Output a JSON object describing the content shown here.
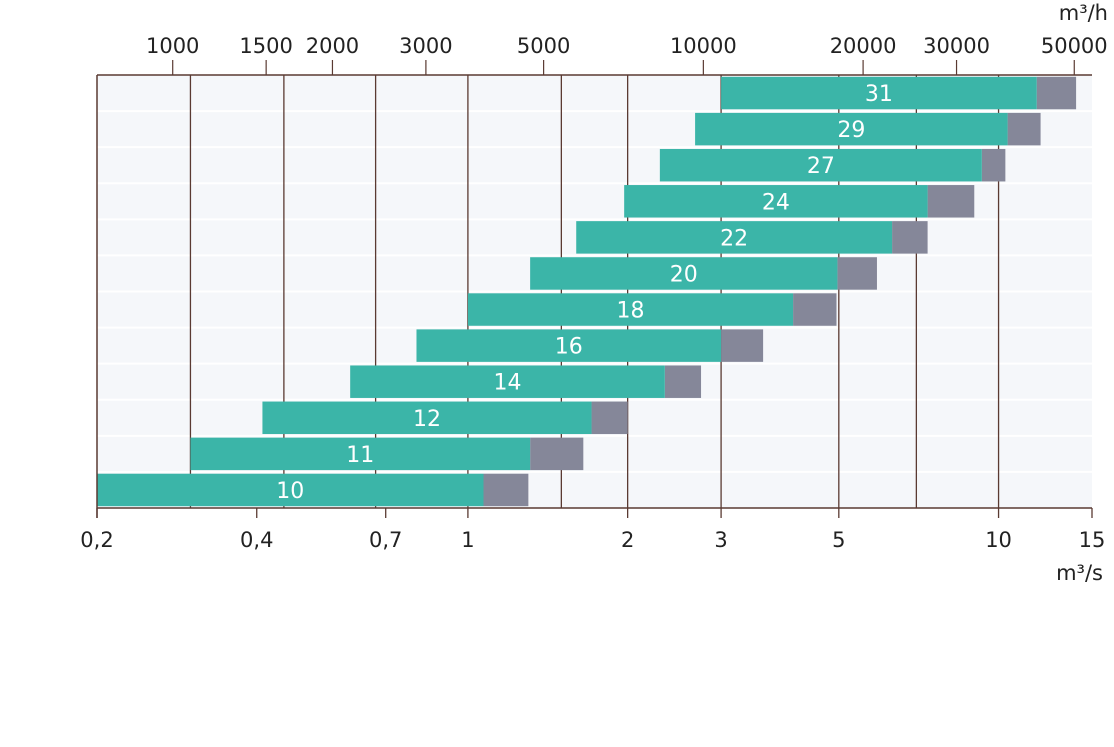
{
  "colors": {
    "bar_main": "#3bb5a8",
    "bar_ext": "#858799",
    "plot_bg": "#f5f7fa",
    "axis": "#5a3a32",
    "grid_h": "#ffffff",
    "text": "#222222"
  },
  "chart_data": {
    "type": "bar",
    "orientation": "horizontal",
    "x_scale": "log",
    "x_unit_bottom": "m³/s",
    "x_unit_top": "m³/h",
    "xlim": [
      0.2,
      15
    ],
    "x_ticks_bottom": [
      {
        "value": 0.2,
        "label": "0,2"
      },
      {
        "value": 0.4,
        "label": "0,4"
      },
      {
        "value": 0.7,
        "label": "0,7"
      },
      {
        "value": 1,
        "label": "1"
      },
      {
        "value": 2,
        "label": "2"
      },
      {
        "value": 3,
        "label": "3"
      },
      {
        "value": 5,
        "label": "5"
      },
      {
        "value": 10,
        "label": "10"
      },
      {
        "value": 15,
        "label": "15"
      }
    ],
    "x_ticks_top": [
      {
        "value": 1000,
        "label": "1000"
      },
      {
        "value": 1500,
        "label": "1500"
      },
      {
        "value": 2000,
        "label": "2000"
      },
      {
        "value": 3000,
        "label": "3000"
      },
      {
        "value": 5000,
        "label": "5000"
      },
      {
        "value": 10000,
        "label": "10000"
      },
      {
        "value": 20000,
        "label": "20000"
      },
      {
        "value": 30000,
        "label": "30000"
      },
      {
        "value": 50000,
        "label": "50000"
      }
    ],
    "vertical_gridlines": [
      0.3,
      0.45,
      0.67,
      1,
      1.5,
      2,
      3,
      5,
      7,
      10
    ],
    "legend": "none",
    "series": [
      {
        "label": "31",
        "start": 3.0,
        "main_end": 11.8,
        "ext_end": 14.0
      },
      {
        "label": "29",
        "start": 2.68,
        "main_end": 10.4,
        "ext_end": 12.0
      },
      {
        "label": "27",
        "start": 2.3,
        "main_end": 9.3,
        "ext_end": 10.3
      },
      {
        "label": "24",
        "start": 1.97,
        "main_end": 7.35,
        "ext_end": 9.0
      },
      {
        "label": "22",
        "start": 1.6,
        "main_end": 6.3,
        "ext_end": 7.35
      },
      {
        "label": "20",
        "start": 1.31,
        "main_end": 4.97,
        "ext_end": 5.9
      },
      {
        "label": "18",
        "start": 1.0,
        "main_end": 4.1,
        "ext_end": 4.95
      },
      {
        "label": "16",
        "start": 0.8,
        "main_end": 3.0,
        "ext_end": 3.6
      },
      {
        "label": "14",
        "start": 0.6,
        "main_end": 2.35,
        "ext_end": 2.75
      },
      {
        "label": "12",
        "start": 0.41,
        "main_end": 1.71,
        "ext_end": 2.0
      },
      {
        "label": "11",
        "start": 0.3,
        "main_end": 1.31,
        "ext_end": 1.65
      },
      {
        "label": "10",
        "start": 0.2,
        "main_end": 1.07,
        "ext_end": 1.3
      }
    ]
  }
}
